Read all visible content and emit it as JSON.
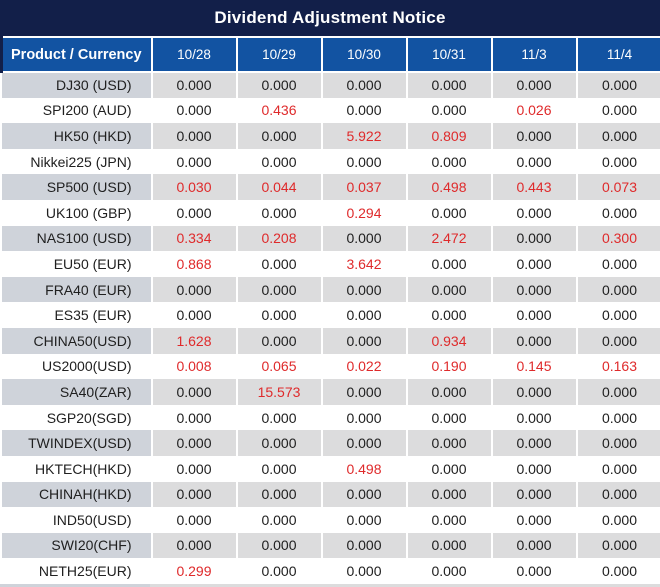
{
  "title": "Dividend Adjustment Notice",
  "table": {
    "product_header": "Product / Currency",
    "date_columns": [
      "10/28",
      "10/29",
      "10/30",
      "10/31",
      "11/3",
      "11/4"
    ],
    "rows": [
      {
        "product": "DJ30 (USD)",
        "values": [
          "0.000",
          "0.000",
          "0.000",
          "0.000",
          "0.000",
          "0.000"
        ]
      },
      {
        "product": "SPI200 (AUD)",
        "values": [
          "0.000",
          "0.436",
          "0.000",
          "0.000",
          "0.026",
          "0.000"
        ]
      },
      {
        "product": "HK50 (HKD)",
        "values": [
          "0.000",
          "0.000",
          "5.922",
          "0.809",
          "0.000",
          "0.000"
        ]
      },
      {
        "product": "Nikkei225 (JPN)",
        "values": [
          "0.000",
          "0.000",
          "0.000",
          "0.000",
          "0.000",
          "0.000"
        ]
      },
      {
        "product": "SP500 (USD)",
        "values": [
          "0.030",
          "0.044",
          "0.037",
          "0.498",
          "0.443",
          "0.073"
        ]
      },
      {
        "product": "UK100 (GBP)",
        "values": [
          "0.000",
          "0.000",
          "0.294",
          "0.000",
          "0.000",
          "0.000"
        ]
      },
      {
        "product": "NAS100 (USD)",
        "values": [
          "0.334",
          "0.208",
          "0.000",
          "2.472",
          "0.000",
          "0.300"
        ]
      },
      {
        "product": "EU50 (EUR)",
        "values": [
          "0.868",
          "0.000",
          "3.642",
          "0.000",
          "0.000",
          "0.000"
        ]
      },
      {
        "product": "FRA40 (EUR)",
        "values": [
          "0.000",
          "0.000",
          "0.000",
          "0.000",
          "0.000",
          "0.000"
        ]
      },
      {
        "product": "ES35 (EUR)",
        "values": [
          "0.000",
          "0.000",
          "0.000",
          "0.000",
          "0.000",
          "0.000"
        ]
      },
      {
        "product": "CHINA50(USD)",
        "values": [
          "1.628",
          "0.000",
          "0.000",
          "0.934",
          "0.000",
          "0.000"
        ]
      },
      {
        "product": "US2000(USD)",
        "values": [
          "0.008",
          "0.065",
          "0.022",
          "0.190",
          "0.145",
          "0.163"
        ]
      },
      {
        "product": "SA40(ZAR)",
        "values": [
          "0.000",
          "15.573",
          "0.000",
          "0.000",
          "0.000",
          "0.000"
        ]
      },
      {
        "product": "SGP20(SGD)",
        "values": [
          "0.000",
          "0.000",
          "0.000",
          "0.000",
          "0.000",
          "0.000"
        ]
      },
      {
        "product": "TWINDEX(USD)",
        "values": [
          "0.000",
          "0.000",
          "0.000",
          "0.000",
          "0.000",
          "0.000"
        ]
      },
      {
        "product": "HKTECH(HKD)",
        "values": [
          "0.000",
          "0.000",
          "0.498",
          "0.000",
          "0.000",
          "0.000"
        ]
      },
      {
        "product": "CHINAH(HKD)",
        "values": [
          "0.000",
          "0.000",
          "0.000",
          "0.000",
          "0.000",
          "0.000"
        ]
      },
      {
        "product": "IND50(USD)",
        "values": [
          "0.000",
          "0.000",
          "0.000",
          "0.000",
          "0.000",
          "0.000"
        ]
      },
      {
        "product": "SWI20(CHF)",
        "values": [
          "0.000",
          "0.000",
          "0.000",
          "0.000",
          "0.000",
          "0.000"
        ]
      },
      {
        "product": "NETH25(EUR)",
        "values": [
          "0.299",
          "0.000",
          "0.000",
          "0.000",
          "0.000",
          "0.000"
        ]
      }
    ],
    "zero_value": "0.000"
  },
  "colors": {
    "title_bar": "#121F49",
    "header_blue": "#1253A2",
    "gray_row_label": "#CFD3DA",
    "gray_row_data": "#DCDCDD",
    "white_row": "#FFFFFF",
    "highlight_red": "#DF2A2B",
    "text_dark": "#202020",
    "header_text": "#FFFFFF"
  }
}
